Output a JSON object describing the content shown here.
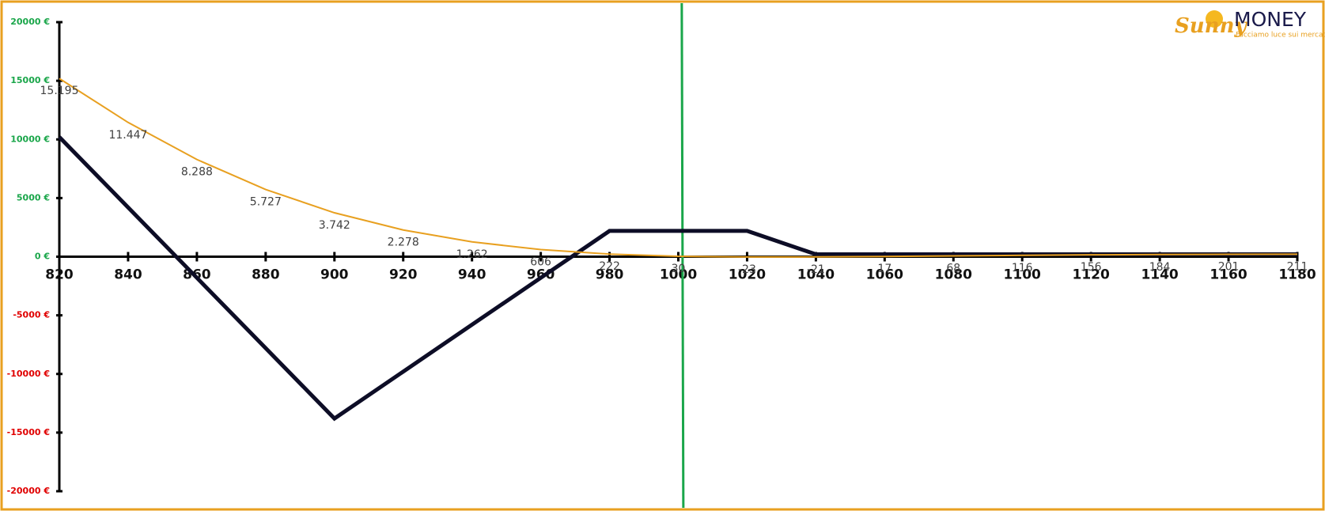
{
  "chart_data": {
    "type": "line",
    "x": [
      820,
      840,
      860,
      880,
      900,
      920,
      940,
      960,
      980,
      1000,
      1020,
      1040,
      1060,
      1080,
      1100,
      1120,
      1140,
      1160,
      1180
    ],
    "xlim": [
      820,
      1180
    ],
    "xticks": [
      820,
      840,
      860,
      880,
      900,
      920,
      940,
      960,
      980,
      1000,
      1020,
      1040,
      1060,
      1080,
      1100,
      1120,
      1140,
      1160,
      1180
    ],
    "ylim": [
      -20000,
      20000
    ],
    "yticks": [
      {
        "value": 20000,
        "label": "20000 €"
      },
      {
        "value": 15000,
        "label": "15000 €"
      },
      {
        "value": 10000,
        "label": "10000 €"
      },
      {
        "value": 5000,
        "label": "5000 €"
      },
      {
        "value": 0,
        "label": "0 €"
      },
      {
        "value": -5000,
        "label": "-5000 €"
      },
      {
        "value": -10000,
        "label": "-10000 €"
      },
      {
        "value": -15000,
        "label": "-15000 €"
      },
      {
        "value": -20000,
        "label": "-20000 €"
      }
    ],
    "positive_color": "#1aa64a",
    "negative_color": "#e00000",
    "series": [
      {
        "color": "#0d0d26",
        "values": [
          10200,
          4200,
          -1800,
          -7800,
          -13800,
          -9800,
          -5800,
          -1800,
          2200,
          2200,
          2200,
          200,
          200,
          200,
          200,
          200,
          200,
          200,
          200
        ]
      },
      {
        "color": "#e8a020",
        "values": [
          15195,
          11447,
          8288,
          5727,
          3742,
          2278,
          1262,
          606,
          222,
          30,
          -23,
          -21,
          17,
          68,
          116,
          156,
          184,
          201,
          211
        ],
        "value_labels": [
          "15.195",
          "11.447",
          "8.288",
          "5.727",
          "3.742",
          "2.278",
          "1.262",
          "606",
          "222",
          "30",
          "-23",
          "-21",
          "17",
          "68",
          "116",
          "156",
          "184",
          "201",
          "211"
        ]
      }
    ],
    "vertical_line": {
      "x": 1001,
      "color": "#1aa64a"
    }
  },
  "logo": {
    "name_a": "Sunny",
    "name_b": "MONEY",
    "tagline": "Facciamo luce sui mercati"
  }
}
